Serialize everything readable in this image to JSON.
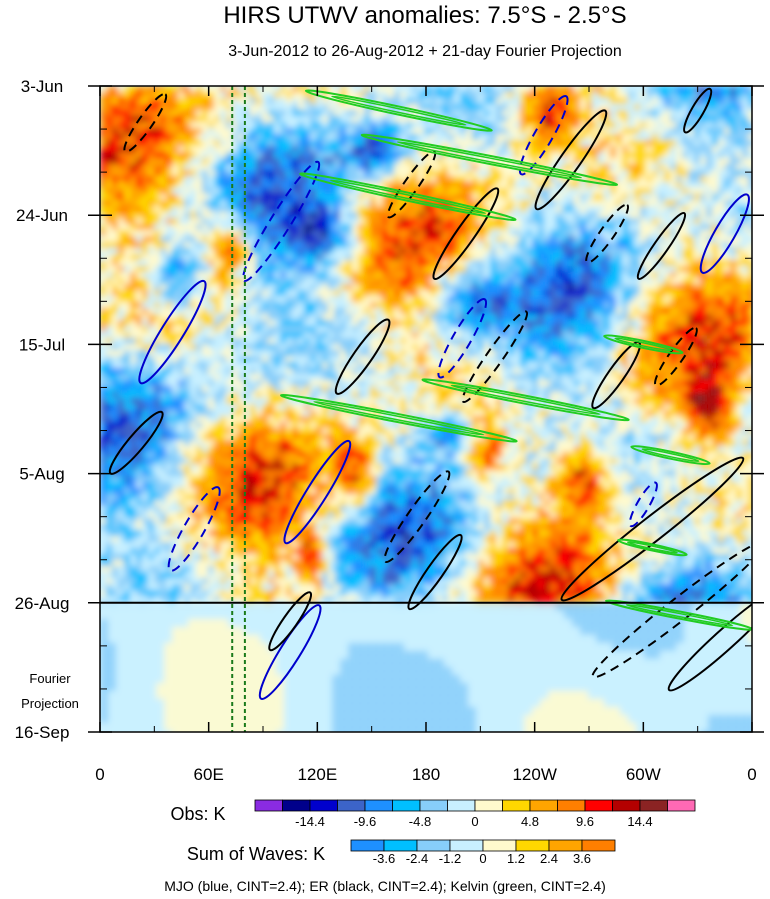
{
  "chart_data": {
    "type": "heatmap",
    "title": "HIRS UTWV anomalies: 7.5°S - 2.5°S",
    "subtitle": "3-Jun-2012 to 26-Aug-2012 + 21-day Fourier Projection",
    "x_ticks": [
      "0",
      "60E",
      "120E",
      "180",
      "120W",
      "60W",
      "0"
    ],
    "x_tick_values": [
      0,
      60,
      120,
      180,
      240,
      300,
      360
    ],
    "x_range": [
      0,
      360
    ],
    "y_ticks": [
      "3-Jun",
      "24-Jun",
      "15-Jul",
      "5-Aug",
      "26-Aug",
      "16-Sep"
    ],
    "y_tick_days": [
      0,
      21,
      42,
      63,
      84,
      105
    ],
    "y_range_days": [
      0,
      105
    ],
    "projection_start_day": 84,
    "projection_label_line1": "Fourier",
    "projection_label_line2": "Projection",
    "today_lines_lon": [
      73,
      80
    ],
    "obs_colorbar": {
      "label": "Obs: K",
      "tick_labels": [
        "-14.4",
        "-9.6",
        "-4.8",
        "0",
        "4.8",
        "9.6",
        "14.4"
      ],
      "colors": [
        "#8a2be2",
        "#00008b",
        "#0000cd",
        "#3c64c8",
        "#1e90ff",
        "#00bfff",
        "#87cefa",
        "#c8f0ff",
        "#fffacd",
        "#ffd700",
        "#ffa500",
        "#ff7f00",
        "#ff0000",
        "#b40000",
        "#8b2323",
        "#ff69b4"
      ]
    },
    "waves_colorbar": {
      "label": "Sum of Waves: K",
      "tick_labels": [
        "-3.6",
        "-2.4",
        "-1.2",
        "0",
        "1.2",
        "2.4",
        "3.6"
      ],
      "colors": [
        "#1e90ff",
        "#00bfff",
        "#87cefa",
        "#c8f0ff",
        "#fffacd",
        "#ffd700",
        "#ffa500",
        "#ff7f00"
      ]
    },
    "footnote": "MJO (blue, CINT=2.4); ER (black, CINT=2.4); Kelvin (green, CINT=2.4)",
    "wave_contours": [
      {
        "type": "MJO",
        "color": "#0000cc",
        "sign": "+",
        "lon": 40,
        "day": 40,
        "rx": 60,
        "ry": 11,
        "rot": -58
      },
      {
        "type": "MJO",
        "color": "#0000cc",
        "sign": "-",
        "lon": 52,
        "day": 72,
        "rx": 48,
        "ry": 10,
        "rot": -60
      },
      {
        "type": "MJO",
        "color": "#0000cc",
        "sign": "-",
        "lon": 100,
        "day": 22,
        "rx": 70,
        "ry": 10,
        "rot": -58
      },
      {
        "type": "MJO",
        "color": "#0000cc",
        "sign": "+",
        "lon": 120,
        "day": 66,
        "rx": 60,
        "ry": 10,
        "rot": -58
      },
      {
        "type": "MJO",
        "color": "#0000cc",
        "sign": "+",
        "lon": 105,
        "day": 92,
        "rx": 55,
        "ry": 10,
        "rot": -58
      },
      {
        "type": "MJO",
        "color": "#0000cc",
        "sign": "-",
        "lon": 200,
        "day": 41,
        "rx": 45,
        "ry": 9,
        "rot": -60
      },
      {
        "type": "MJO",
        "color": "#0000cc",
        "sign": "-",
        "lon": 245,
        "day": 8,
        "rx": 45,
        "ry": 9,
        "rot": -60
      },
      {
        "type": "MJO",
        "color": "#0000cc",
        "sign": "+",
        "lon": 345,
        "day": 24,
        "rx": 45,
        "ry": 10,
        "rot": -60
      },
      {
        "type": "MJO",
        "color": "#0000cc",
        "sign": "-",
        "lon": 300,
        "day": 68,
        "rx": 25,
        "ry": 6,
        "rot": -60
      },
      {
        "type": "ER",
        "color": "#000000",
        "sign": "+",
        "lon": 20,
        "day": 58,
        "rx": 40,
        "ry": 8,
        "rot": -50
      },
      {
        "type": "ER",
        "color": "#000000",
        "sign": "-",
        "lon": 25,
        "day": 6,
        "rx": 35,
        "ry": 7,
        "rot": -55
      },
      {
        "type": "ER",
        "color": "#000000",
        "sign": "+",
        "lon": 105,
        "day": 87,
        "rx": 35,
        "ry": 7,
        "rot": -55
      },
      {
        "type": "ER",
        "color": "#000000",
        "sign": "-",
        "lon": 175,
        "day": 70,
        "rx": 55,
        "ry": 9,
        "rot": -55
      },
      {
        "type": "ER",
        "color": "#000000",
        "sign": "+",
        "lon": 185,
        "day": 79,
        "rx": 45,
        "ry": 8,
        "rot": -55
      },
      {
        "type": "ER",
        "color": "#000000",
        "sign": "+",
        "lon": 145,
        "day": 44,
        "rx": 45,
        "ry": 9,
        "rot": -55
      },
      {
        "type": "ER",
        "color": "#000000",
        "sign": "-",
        "lon": 172,
        "day": 16,
        "rx": 40,
        "ry": 7,
        "rot": -55
      },
      {
        "type": "ER",
        "color": "#000000",
        "sign": "+",
        "lon": 202,
        "day": 24,
        "rx": 55,
        "ry": 9,
        "rot": -55
      },
      {
        "type": "ER",
        "color": "#000000",
        "sign": "-",
        "lon": 218,
        "day": 44,
        "rx": 55,
        "ry": 8,
        "rot": -55
      },
      {
        "type": "ER",
        "color": "#000000",
        "sign": "+",
        "lon": 260,
        "day": 12,
        "rx": 60,
        "ry": 10,
        "rot": -55
      },
      {
        "type": "ER",
        "color": "#000000",
        "sign": "-",
        "lon": 280,
        "day": 24,
        "rx": 35,
        "ry": 7,
        "rot": -55
      },
      {
        "type": "ER",
        "color": "#000000",
        "sign": "+",
        "lon": 310,
        "day": 26,
        "rx": 40,
        "ry": 7,
        "rot": -55
      },
      {
        "type": "ER",
        "color": "#000000",
        "sign": "+",
        "lon": 285,
        "day": 47,
        "rx": 40,
        "ry": 8,
        "rot": -55
      },
      {
        "type": "ER",
        "color": "#000000",
        "sign": "-",
        "lon": 318,
        "day": 44,
        "rx": 35,
        "ry": 7,
        "rot": -55
      },
      {
        "type": "ER",
        "color": "#000000",
        "sign": "+",
        "lon": 305,
        "day": 72,
        "rx": 115,
        "ry": 12,
        "rot": -38
      },
      {
        "type": "ER",
        "color": "#000000",
        "sign": "-",
        "lon": 320,
        "day": 85,
        "rx": 110,
        "ry": 11,
        "rot": -38
      },
      {
        "type": "ER",
        "color": "#000000",
        "sign": "+",
        "lon": 345,
        "day": 90,
        "rx": 75,
        "ry": 10,
        "rot": -42
      },
      {
        "type": "ER",
        "color": "#000000",
        "sign": "+",
        "lon": 330,
        "day": 4,
        "rx": 25,
        "ry": 6,
        "rot": -60
      },
      {
        "type": "Kelvin",
        "color": "#22cc22",
        "sign": "+",
        "lon": 165,
        "day": 4,
        "rx": 95,
        "ry": 4,
        "rot": 12
      },
      {
        "type": "Kelvin",
        "color": "#22cc22",
        "sign": "+",
        "lon": 215,
        "day": 12,
        "rx": 130,
        "ry": 4,
        "rot": 11
      },
      {
        "type": "Kelvin",
        "color": "#22cc22",
        "sign": "+",
        "lon": 170,
        "day": 18,
        "rx": 110,
        "ry": 4,
        "rot": 12
      },
      {
        "type": "Kelvin",
        "color": "#22cc22",
        "sign": "+",
        "lon": 300,
        "day": 42,
        "rx": 40,
        "ry": 3.5,
        "rot": 12
      },
      {
        "type": "Kelvin",
        "color": "#22cc22",
        "sign": "+",
        "lon": 235,
        "day": 51,
        "rx": 105,
        "ry": 4,
        "rot": 11
      },
      {
        "type": "Kelvin",
        "color": "#22cc22",
        "sign": "+",
        "lon": 165,
        "day": 54,
        "rx": 120,
        "ry": 4,
        "rot": 11
      },
      {
        "type": "Kelvin",
        "color": "#22cc22",
        "sign": "+",
        "lon": 315,
        "day": 60,
        "rx": 40,
        "ry": 3.5,
        "rot": 12
      },
      {
        "type": "Kelvin",
        "color": "#22cc22",
        "sign": "+",
        "lon": 305,
        "day": 75,
        "rx": 35,
        "ry": 3,
        "rot": 12
      },
      {
        "type": "Kelvin",
        "color": "#22cc22",
        "sign": "+",
        "lon": 320,
        "day": 86,
        "rx": 75,
        "ry": 3.5,
        "rot": 11
      }
    ]
  }
}
